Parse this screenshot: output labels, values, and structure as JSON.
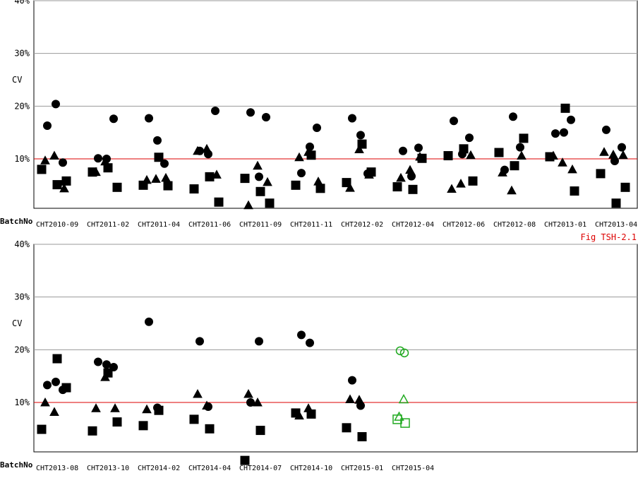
{
  "fig_label": "Fig TSH-2.1",
  "colors": {
    "reference_line": "#dd0000",
    "current_marker": "#22aa22",
    "marker": "#000000",
    "grid": "#999999"
  },
  "chart_data": [
    {
      "type": "scatter",
      "ylabel": "CV",
      "xlabel": "BatchNo",
      "ylim": [
        0,
        40
      ],
      "yticks": [
        "10%",
        "20%",
        "30%",
        "40%"
      ],
      "reference_line": 10,
      "grid": true,
      "categories": [
        "CHT2010-09",
        "CHT2011-02",
        "CHT2011-04",
        "CHT2011-06",
        "CHT2011-09",
        "CHT2011-11",
        "CHT2012-02",
        "CHT2012-04",
        "CHT2012-06",
        "CHT2012-08",
        "CHT2013-01",
        "CHT2013-04"
      ],
      "series": [
        {
          "marker": "circle",
          "points": [
            [
              0,
              16.3
            ],
            [
              0,
              20.4
            ],
            [
              0,
              9.3
            ],
            [
              1,
              10.1
            ],
            [
              1,
              10.0
            ],
            [
              1,
              17.6
            ],
            [
              2,
              17.7
            ],
            [
              2,
              13.5
            ],
            [
              2,
              9.1
            ],
            [
              3,
              11.5
            ],
            [
              3,
              10.9
            ],
            [
              3,
              19.1
            ],
            [
              4,
              18.8
            ],
            [
              4,
              6.6
            ],
            [
              4,
              17.9
            ],
            [
              5,
              7.3
            ],
            [
              5,
              12.3
            ],
            [
              5,
              15.9
            ],
            [
              6,
              17.7
            ],
            [
              6,
              14.5
            ],
            [
              6,
              7.2
            ],
            [
              7,
              11.5
            ],
            [
              7,
              6.7
            ],
            [
              7,
              12.1
            ],
            [
              8,
              17.2
            ],
            [
              8,
              10.9
            ],
            [
              8,
              14.0
            ],
            [
              9,
              7.9
            ],
            [
              9,
              18.0
            ],
            [
              9,
              12.2
            ],
            [
              10,
              14.8
            ],
            [
              10,
              15.0
            ],
            [
              10,
              17.4
            ],
            [
              11,
              15.5
            ],
            [
              11,
              9.6
            ],
            [
              11,
              12.2
            ]
          ]
        },
        {
          "marker": "square",
          "points": [
            [
              0,
              8.0
            ],
            [
              0,
              5.1
            ],
            [
              0,
              5.8
            ],
            [
              1,
              7.5
            ],
            [
              1,
              8.3
            ],
            [
              1,
              4.6
            ],
            [
              2,
              5.0
            ],
            [
              2,
              10.3
            ],
            [
              2,
              4.9
            ],
            [
              3,
              4.3
            ],
            [
              3,
              6.6
            ],
            [
              3,
              1.8
            ],
            [
              4,
              6.3
            ],
            [
              4,
              3.8
            ],
            [
              4,
              1.6
            ],
            [
              5,
              5.0
            ],
            [
              5,
              10.7
            ],
            [
              5,
              4.4
            ],
            [
              6,
              5.5
            ],
            [
              6,
              12.8
            ],
            [
              6,
              7.5
            ],
            [
              7,
              4.7
            ],
            [
              7,
              4.2
            ],
            [
              7,
              10.1
            ],
            [
              8,
              10.6
            ],
            [
              8,
              11.9
            ],
            [
              8,
              5.8
            ],
            [
              9,
              11.2
            ],
            [
              9,
              8.7
            ],
            [
              9,
              13.9
            ],
            [
              10,
              10.4
            ],
            [
              10,
              19.6
            ],
            [
              10,
              3.9
            ],
            [
              11,
              7.2
            ],
            [
              11,
              1.6
            ],
            [
              11,
              4.6
            ]
          ]
        },
        {
          "marker": "triangle",
          "points": [
            [
              0,
              9.7
            ],
            [
              0,
              10.6
            ],
            [
              0,
              4.4
            ],
            [
              1,
              7.5
            ],
            [
              1,
              9.5
            ],
            [
              2,
              6.0
            ],
            [
              2,
              6.2
            ],
            [
              2,
              6.4
            ],
            [
              3,
              11.5
            ],
            [
              3,
              11.9
            ],
            [
              3,
              7.0
            ],
            [
              4,
              1.2
            ],
            [
              4,
              8.7
            ],
            [
              4,
              5.6
            ],
            [
              5,
              10.3
            ],
            [
              5,
              11.3
            ],
            [
              5,
              5.7
            ],
            [
              6,
              4.5
            ],
            [
              6,
              11.8
            ],
            [
              6,
              7.0
            ],
            [
              7,
              6.4
            ],
            [
              7,
              7.9
            ],
            [
              7,
              10.4
            ],
            [
              8,
              4.3
            ],
            [
              8,
              5.3
            ],
            [
              8,
              10.7
            ],
            [
              9,
              7.4
            ],
            [
              9,
              4.0
            ],
            [
              9,
              10.6
            ],
            [
              10,
              10.6
            ],
            [
              10,
              9.3
            ],
            [
              10,
              8.0
            ],
            [
              11,
              11.3
            ],
            [
              11,
              10.8
            ],
            [
              11,
              10.7
            ]
          ]
        }
      ]
    },
    {
      "type": "scatter",
      "ylabel": "CV",
      "xlabel": "BatchNo",
      "ylim": [
        0,
        40
      ],
      "yticks": [
        "10%",
        "20%",
        "30%",
        "40%"
      ],
      "reference_line": 10,
      "grid": true,
      "categories": [
        "CHT2013-08",
        "CHT2013-10",
        "CHT2014-02",
        "CHT2014-04",
        "CHT2014-07",
        "CHT2014-10",
        "CHT2015-01",
        "CHT2015-04"
      ],
      "series": [
        {
          "marker": "circle",
          "points": [
            [
              0,
              13.3
            ],
            [
              0,
              13.9
            ],
            [
              0,
              12.4
            ],
            [
              1,
              17.7
            ],
            [
              1,
              17.2
            ],
            [
              1,
              16.7
            ],
            [
              2,
              25.3
            ],
            [
              2,
              9.0
            ],
            [
              3,
              21.6
            ],
            [
              3,
              9.2
            ],
            [
              4,
              10.0
            ],
            [
              4,
              21.6
            ],
            [
              5,
              22.8
            ],
            [
              5,
              21.3
            ],
            [
              6,
              14.2
            ],
            [
              6,
              9.4
            ]
          ]
        },
        {
          "marker": "square",
          "points": [
            [
              0,
              4.9
            ],
            [
              0,
              18.3
            ],
            [
              0,
              12.8
            ],
            [
              1,
              4.6
            ],
            [
              1,
              15.6
            ],
            [
              1,
              6.3
            ],
            [
              2,
              5.6
            ],
            [
              2,
              8.5
            ],
            [
              3,
              6.8
            ],
            [
              3,
              5.0
            ],
            [
              4,
              -1.0
            ],
            [
              4,
              4.7
            ],
            [
              5,
              8.0
            ],
            [
              5,
              7.8
            ],
            [
              6,
              5.2
            ],
            [
              6,
              3.5
            ]
          ]
        },
        {
          "marker": "triangle",
          "points": [
            [
              0,
              10.0
            ],
            [
              0,
              8.2
            ],
            [
              1,
              8.9
            ],
            [
              1,
              14.8
            ],
            [
              1,
              8.9
            ],
            [
              2,
              8.7
            ],
            [
              3,
              11.6
            ],
            [
              3,
              9.4
            ],
            [
              4,
              11.6
            ],
            [
              4,
              10.0
            ],
            [
              5,
              7.5
            ],
            [
              5,
              8.9
            ],
            [
              6,
              10.6
            ],
            [
              6,
              10.5
            ]
          ]
        },
        {
          "marker": "open-circle",
          "current": true,
          "points": [
            [
              7,
              19.8
            ],
            [
              7,
              19.4
            ]
          ]
        },
        {
          "marker": "open-square",
          "current": true,
          "points": [
            [
              7,
              6.8
            ],
            [
              7,
              6.1
            ]
          ]
        },
        {
          "marker": "open-triangle",
          "current": true,
          "points": [
            [
              7,
              7.3
            ],
            [
              7,
              10.6
            ]
          ]
        }
      ]
    }
  ]
}
